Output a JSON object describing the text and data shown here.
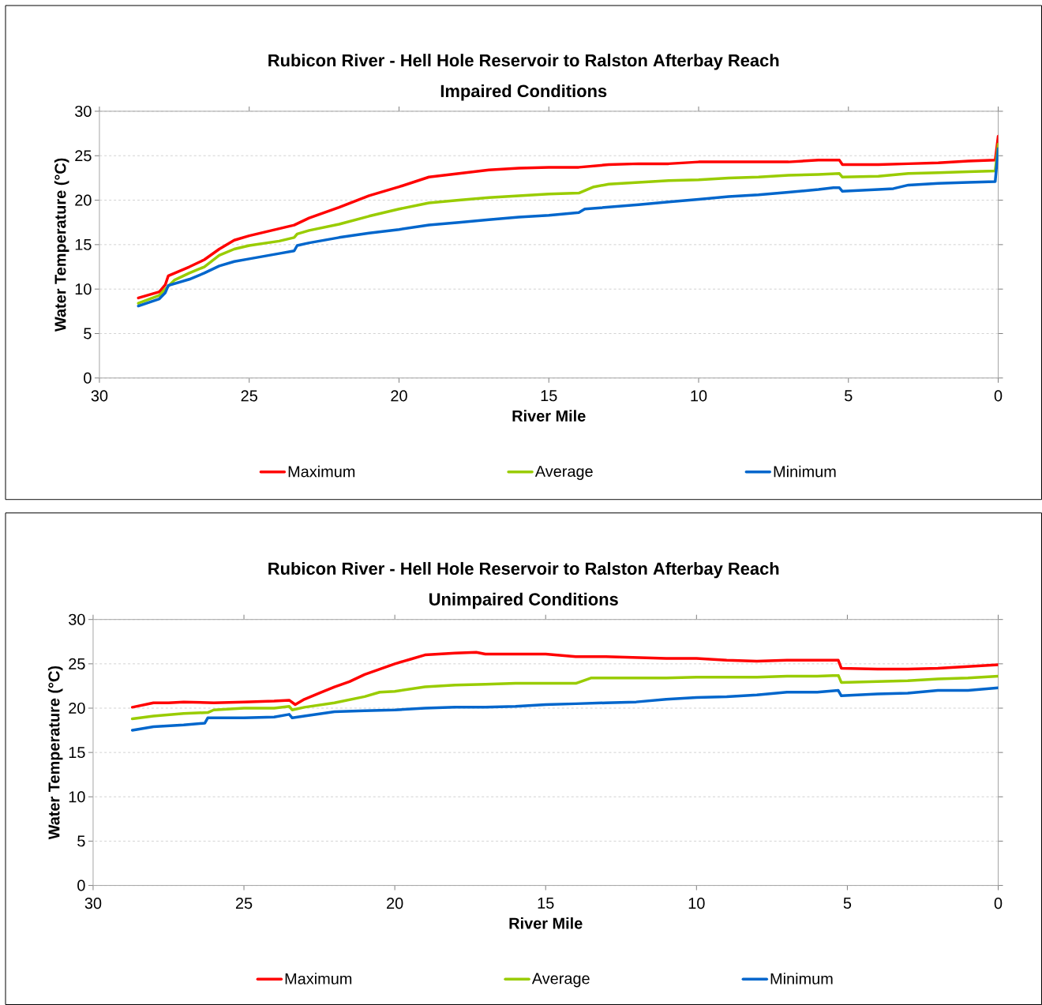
{
  "chart_data": [
    {
      "type": "line",
      "title": "Rubicon River - Hell Hole Reservoir to Ralston Afterbay Reach",
      "subtitle": "Impaired Conditions",
      "xlabel": "River Mile",
      "ylabel": "Water Temperature (°C)",
      "xlim": [
        30,
        0
      ],
      "ylim": [
        0,
        30
      ],
      "xticks": [
        30,
        25,
        20,
        15,
        10,
        5,
        0
      ],
      "yticks": [
        0,
        5,
        10,
        15,
        20,
        25,
        30
      ],
      "grid": "y",
      "legend": "bottom",
      "marker": "none",
      "line_style": "solid",
      "series": [
        {
          "name": "Maximum",
          "color": "#ff0000",
          "x": [
            28.7,
            28,
            27.8,
            27.7,
            27,
            26.5,
            26,
            25.5,
            25,
            24,
            23.5,
            23,
            22,
            21,
            20,
            19,
            18,
            17,
            16,
            15,
            14,
            13,
            12,
            11,
            10,
            9,
            8,
            7,
            6,
            5.3,
            5.2,
            4,
            3,
            2,
            1,
            0.1,
            0
          ],
          "values": [
            9.0,
            9.7,
            10.5,
            11.5,
            12.5,
            13.3,
            14.5,
            15.5,
            16.0,
            16.8,
            17.2,
            18.0,
            19.2,
            20.5,
            21.5,
            22.6,
            23.0,
            23.4,
            23.6,
            23.7,
            23.7,
            24.0,
            24.1,
            24.1,
            24.3,
            24.3,
            24.3,
            24.3,
            24.5,
            24.5,
            24.0,
            24.0,
            24.1,
            24.2,
            24.4,
            24.5,
            27.2
          ]
        },
        {
          "name": "Average",
          "color": "#99cc00",
          "x": [
            28.7,
            28,
            27.8,
            27.5,
            27,
            26.5,
            26,
            25.5,
            25,
            24,
            23.5,
            23.4,
            23,
            22,
            21,
            20,
            19,
            18,
            17,
            16,
            15,
            14,
            13.5,
            13,
            12,
            11,
            10,
            9,
            8,
            7,
            6,
            5.3,
            5.2,
            4,
            3,
            2,
            1,
            0.1,
            0
          ],
          "values": [
            8.4,
            9.3,
            10.0,
            11.0,
            11.8,
            12.5,
            13.8,
            14.5,
            14.9,
            15.4,
            15.8,
            16.2,
            16.6,
            17.3,
            18.2,
            19.0,
            19.7,
            20.0,
            20.3,
            20.5,
            20.7,
            20.8,
            21.5,
            21.8,
            22.0,
            22.2,
            22.3,
            22.5,
            22.6,
            22.8,
            22.9,
            23.0,
            22.6,
            22.7,
            23.0,
            23.1,
            23.2,
            23.3,
            26.3
          ]
        },
        {
          "name": "Minimum",
          "color": "#0066cc",
          "x": [
            28.7,
            28,
            27.8,
            27.7,
            27,
            26.5,
            26,
            25.5,
            25,
            24,
            23.5,
            23.4,
            23,
            22,
            21,
            20,
            19,
            18,
            17,
            16,
            15,
            14,
            13.8,
            12,
            11,
            10,
            9,
            8,
            7,
            6,
            5.5,
            5.3,
            5.2,
            4,
            3.5,
            3,
            2,
            1,
            0.1,
            0
          ],
          "values": [
            8.1,
            8.9,
            9.6,
            10.4,
            11.1,
            11.8,
            12.6,
            13.1,
            13.4,
            14.0,
            14.3,
            14.9,
            15.2,
            15.8,
            16.3,
            16.7,
            17.2,
            17.5,
            17.8,
            18.1,
            18.3,
            18.6,
            19.0,
            19.5,
            19.8,
            20.1,
            20.4,
            20.6,
            20.9,
            21.2,
            21.4,
            21.4,
            21.0,
            21.2,
            21.3,
            21.7,
            21.9,
            22.0,
            22.1,
            25.8
          ]
        }
      ]
    },
    {
      "type": "line",
      "title": "Rubicon River - Hell Hole Reservoir to Ralston Afterbay Reach",
      "subtitle": "Unimpaired Conditions",
      "xlabel": "River Mile",
      "ylabel": "Water Temperature (°C)",
      "xlim": [
        30,
        0
      ],
      "ylim": [
        0,
        30
      ],
      "xticks": [
        30,
        25,
        20,
        15,
        10,
        5,
        0
      ],
      "yticks": [
        0,
        5,
        10,
        15,
        20,
        25,
        30
      ],
      "grid": "y",
      "legend": "bottom",
      "marker": "none",
      "line_style": "solid",
      "series": [
        {
          "name": "Maximum",
          "color": "#ff0000",
          "x": [
            28.7,
            28,
            27.5,
            27,
            26,
            25,
            24,
            23.5,
            23.3,
            23,
            22.5,
            22,
            21.5,
            21,
            20.5,
            20,
            19.5,
            19,
            18,
            17.3,
            17,
            16,
            15,
            14,
            13,
            12,
            11,
            10,
            9,
            8,
            7,
            6,
            5.3,
            5.2,
            4,
            3,
            2,
            1,
            0
          ],
          "values": [
            20.1,
            20.6,
            20.6,
            20.7,
            20.6,
            20.7,
            20.8,
            20.9,
            20.4,
            21.0,
            21.7,
            22.4,
            23.0,
            23.8,
            24.4,
            25.0,
            25.5,
            26.0,
            26.2,
            26.3,
            26.1,
            26.1,
            26.1,
            25.8,
            25.8,
            25.7,
            25.6,
            25.6,
            25.4,
            25.3,
            25.4,
            25.4,
            25.4,
            24.5,
            24.4,
            24.4,
            24.5,
            24.7,
            24.9
          ]
        },
        {
          "name": "Average",
          "color": "#99cc00",
          "x": [
            28.7,
            28,
            27,
            26.2,
            26,
            25,
            24,
            23.5,
            23.4,
            23,
            22,
            21,
            20.5,
            20,
            19,
            18,
            17,
            16,
            15,
            14,
            13.5,
            13,
            12,
            11,
            10,
            9,
            8,
            7,
            6,
            5.3,
            5.2,
            4,
            3,
            2,
            1,
            0
          ],
          "values": [
            18.8,
            19.1,
            19.4,
            19.5,
            19.8,
            20.0,
            20.0,
            20.2,
            19.8,
            20.1,
            20.6,
            21.3,
            21.8,
            21.9,
            22.4,
            22.6,
            22.7,
            22.8,
            22.8,
            22.8,
            23.4,
            23.4,
            23.4,
            23.4,
            23.5,
            23.5,
            23.5,
            23.6,
            23.6,
            23.7,
            22.9,
            23.0,
            23.1,
            23.3,
            23.4,
            23.6
          ]
        },
        {
          "name": "Minimum",
          "color": "#0066cc",
          "x": [
            28.7,
            28,
            27,
            26.3,
            26.2,
            25,
            24,
            23.5,
            23.4,
            23,
            22,
            21,
            20,
            19,
            18,
            17,
            16,
            15,
            14,
            13,
            12,
            11,
            10,
            9,
            8,
            7,
            6,
            5.3,
            5.2,
            4,
            3,
            2,
            1,
            0
          ],
          "values": [
            17.5,
            17.9,
            18.1,
            18.3,
            18.9,
            18.9,
            19.0,
            19.3,
            18.9,
            19.1,
            19.6,
            19.7,
            19.8,
            20.0,
            20.1,
            20.1,
            20.2,
            20.4,
            20.5,
            20.6,
            20.7,
            21.0,
            21.2,
            21.3,
            21.5,
            21.8,
            21.8,
            22.0,
            21.4,
            21.6,
            21.7,
            22.0,
            22.0,
            22.3
          ]
        }
      ]
    }
  ]
}
